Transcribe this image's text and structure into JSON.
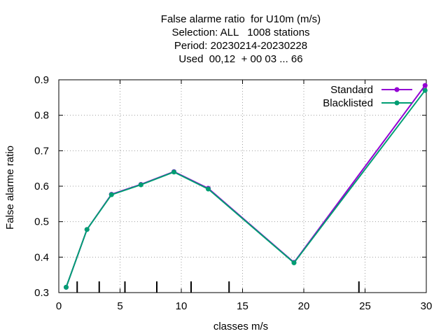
{
  "chart_data": {
    "type": "line",
    "title_lines": [
      "False alarme ratio  for U10m (m/s)",
      "Selection: ALL   1008 stations",
      "Period: 20230214-20230228",
      "Used  00,12  + 00 03 ... 66"
    ],
    "xlabel": "classes m/s",
    "ylabel": "False alarme ratio",
    "xlim": [
      0,
      30
    ],
    "ylim": [
      0.3,
      0.9
    ],
    "xticks": [
      "0",
      "5",
      "10",
      "15",
      "20",
      "25",
      "30"
    ],
    "yticks": [
      "0.3",
      "0.4",
      "0.5",
      "0.6",
      "0.7",
      "0.8",
      "0.9"
    ],
    "grid": true,
    "legend_position": "top-right",
    "class_markers_x": [
      1.5,
      3.3,
      5.4,
      8.0,
      10.8,
      13.9,
      24.5
    ],
    "series": [
      {
        "name": "Standard",
        "color": "#9400d3",
        "x": [
          0.6,
          2.3,
          4.3,
          6.7,
          9.4,
          12.2,
          19.2,
          29.9
        ],
        "y": [
          0.315,
          0.478,
          0.577,
          0.605,
          0.641,
          0.594,
          0.385,
          0.884
        ]
      },
      {
        "name": "Blacklisted",
        "color": "#009e73",
        "x": [
          0.6,
          2.3,
          4.3,
          6.7,
          9.4,
          12.2,
          19.2,
          29.9
        ],
        "y": [
          0.315,
          0.478,
          0.576,
          0.604,
          0.64,
          0.592,
          0.384,
          0.87
        ]
      }
    ]
  }
}
